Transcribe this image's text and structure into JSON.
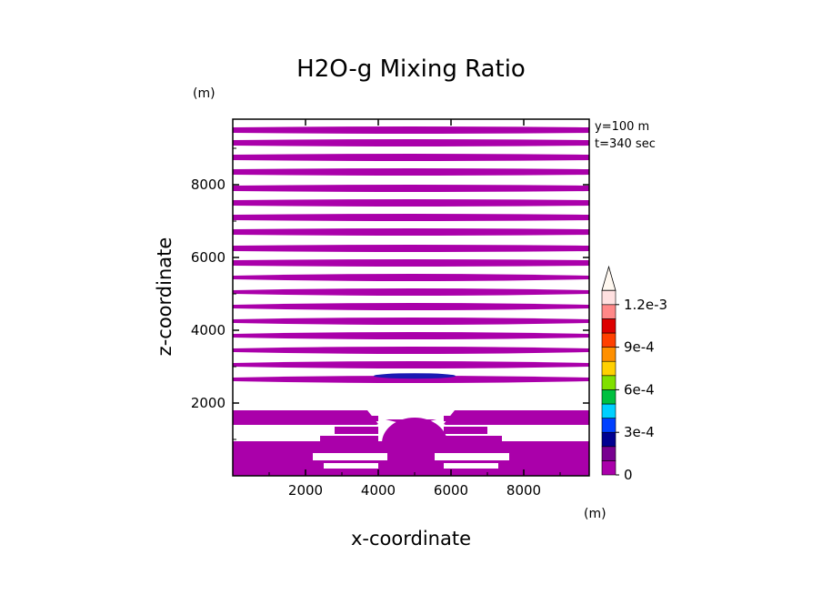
{
  "chart_data": {
    "type": "contour",
    "title": "H2O-g Mixing Ratio",
    "xlabel": "x-coordinate",
    "ylabel": "z-coordinate",
    "xunit": "(m)",
    "yunit": "(m)",
    "xlim": [
      0,
      9800
    ],
    "ylim": [
      0,
      9800
    ],
    "xticks": [
      2000,
      4000,
      6000,
      8000
    ],
    "yticks": [
      2000,
      4000,
      6000,
      8000
    ],
    "annotations": [
      "y=100 m",
      "t=340 sec"
    ],
    "fill_color": "#aa00aa",
    "min_color": "#1a1ab3",
    "bands_z": [
      [
        9400,
        9600
      ],
      [
        9050,
        9250
      ],
      [
        8650,
        8850
      ],
      [
        8250,
        8450
      ],
      [
        7800,
        8000
      ],
      [
        7400,
        7600
      ],
      [
        7000,
        7200
      ],
      [
        6600,
        6800
      ],
      [
        6150,
        6350
      ],
      [
        5750,
        5950
      ],
      [
        5350,
        5550
      ],
      [
        4950,
        5150
      ],
      [
        4550,
        4750
      ],
      [
        4150,
        4350
      ],
      [
        3750,
        3950
      ],
      [
        3350,
        3550
      ],
      [
        2950,
        3150
      ],
      [
        2550,
        2750
      ]
    ],
    "low_band_z": [
      1400,
      1800
    ],
    "bottom_band_z": [
      0,
      950
    ],
    "local_minimum": {
      "x": 5000,
      "z": 2720
    },
    "colorbar": {
      "colors": [
        "#aa00aa",
        "#780090",
        "#000090",
        "#0040ff",
        "#00d0ff",
        "#00c040",
        "#80e000",
        "#ffd000",
        "#ff9000",
        "#ff4000",
        "#dd0000",
        "#ff8888",
        "#ffe0e0"
      ],
      "labels": [
        {
          "value": 0,
          "text": "0"
        },
        {
          "value": 0.0003,
          "text": "3e-4"
        },
        {
          "value": 0.0006,
          "text": "6e-4"
        },
        {
          "value": 0.0009,
          "text": "9e-4"
        },
        {
          "value": 0.0012,
          "text": "1.2e-3"
        }
      ],
      "min": 0,
      "step": 0.0001,
      "extend": "max"
    }
  }
}
